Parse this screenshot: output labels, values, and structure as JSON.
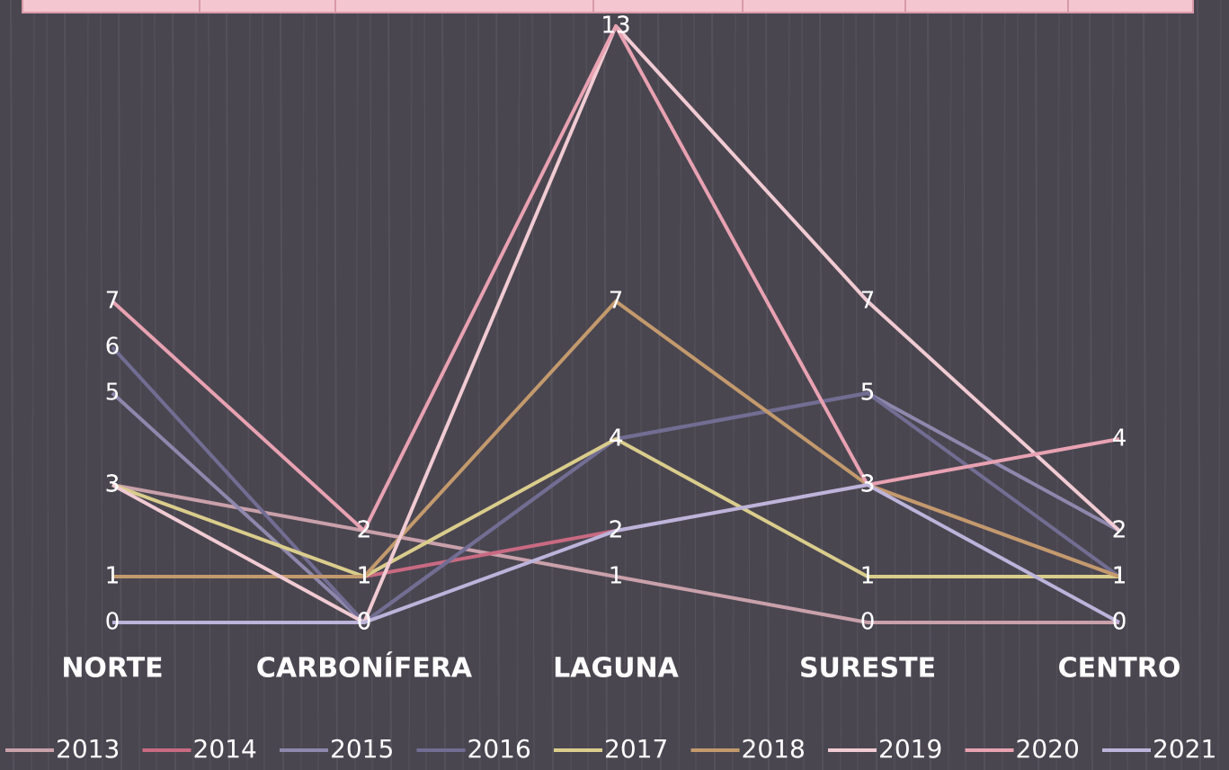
{
  "chart_data": {
    "type": "line",
    "categories": [
      "NORTE",
      "CARBONÍFERA",
      "LAGUNA",
      "SURESTE",
      "CENTRO"
    ],
    "series": [
      {
        "name": "2013",
        "color": "#c9a1ab",
        "values": [
          3,
          2,
          1,
          0,
          0
        ]
      },
      {
        "name": "2014",
        "color": "#c96a82",
        "values": [
          1,
          1,
          2,
          3,
          1
        ]
      },
      {
        "name": "2015",
        "color": "#8e88ad",
        "values": [
          5,
          0,
          4,
          5,
          2
        ]
      },
      {
        "name": "2016",
        "color": "#726d92",
        "values": [
          6,
          0,
          4,
          5,
          1
        ]
      },
      {
        "name": "2017",
        "color": "#dacd8c",
        "values": [
          3,
          1,
          4,
          1,
          1
        ]
      },
      {
        "name": "2018",
        "color": "#c39a6d",
        "values": [
          1,
          1,
          7,
          3,
          1
        ]
      },
      {
        "name": "2019",
        "color": "#f1cbd3",
        "values": [
          3,
          0,
          13,
          7,
          2
        ]
      },
      {
        "name": "2020",
        "color": "#e8a2b2",
        "values": [
          7,
          2,
          13,
          3,
          4
        ]
      },
      {
        "name": "2021",
        "color": "#bcb4da",
        "values": [
          0,
          0,
          2,
          3,
          0
        ]
      }
    ],
    "ylim": [
      0,
      13
    ],
    "legend": "bottom"
  }
}
